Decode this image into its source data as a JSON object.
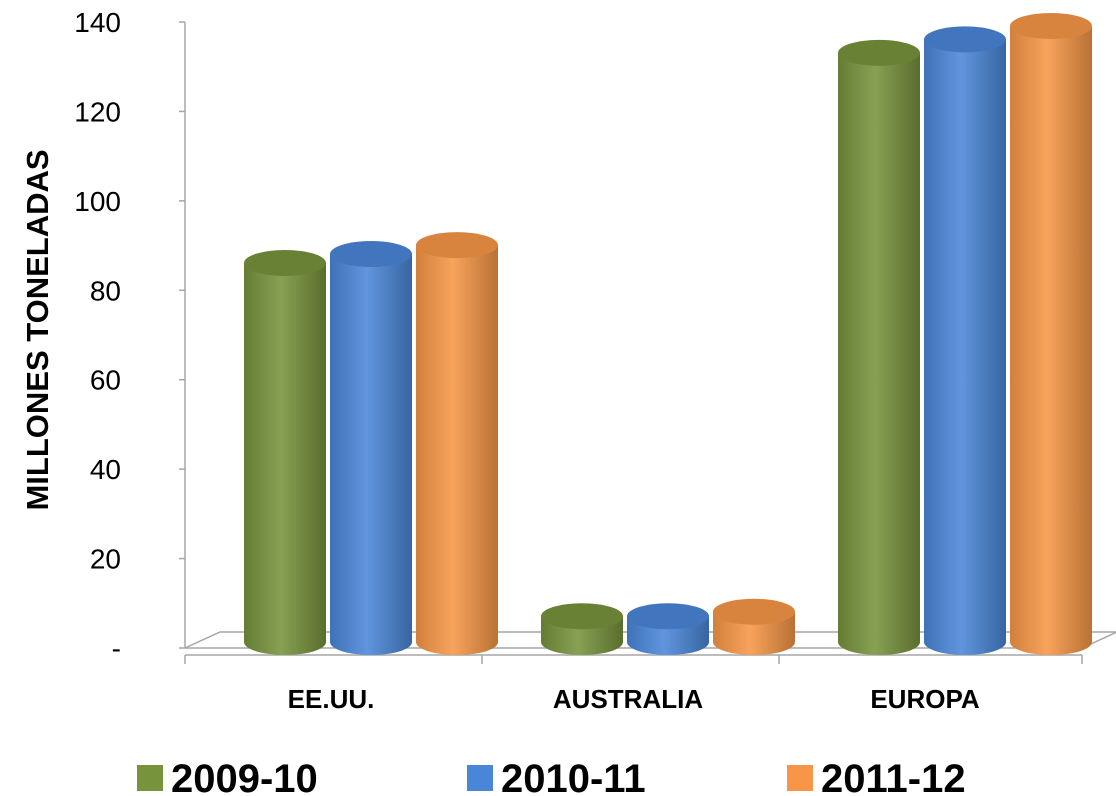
{
  "chart_data": {
    "type": "bar",
    "style": "3d-cylinder",
    "title": "",
    "xlabel": "",
    "ylabel": "MILLONES TONELADAS",
    "ylim": [
      0,
      140
    ],
    "yticks": [
      "-",
      "20",
      "40",
      "60",
      "80",
      "100",
      "120",
      "140"
    ],
    "categories": [
      "EE.UU.",
      "AUSTRALIA",
      "EUROPA"
    ],
    "series": [
      {
        "name": "2009-10",
        "color": "#77933C",
        "values": [
          87,
          8,
          134
        ]
      },
      {
        "name": "2010-11",
        "color": "#4A86D8",
        "values": [
          89,
          8,
          137
        ]
      },
      {
        "name": "2011-12",
        "color": "#F79646",
        "values": [
          91,
          9,
          140
        ]
      }
    ],
    "grid": false,
    "legend": "bottom"
  }
}
